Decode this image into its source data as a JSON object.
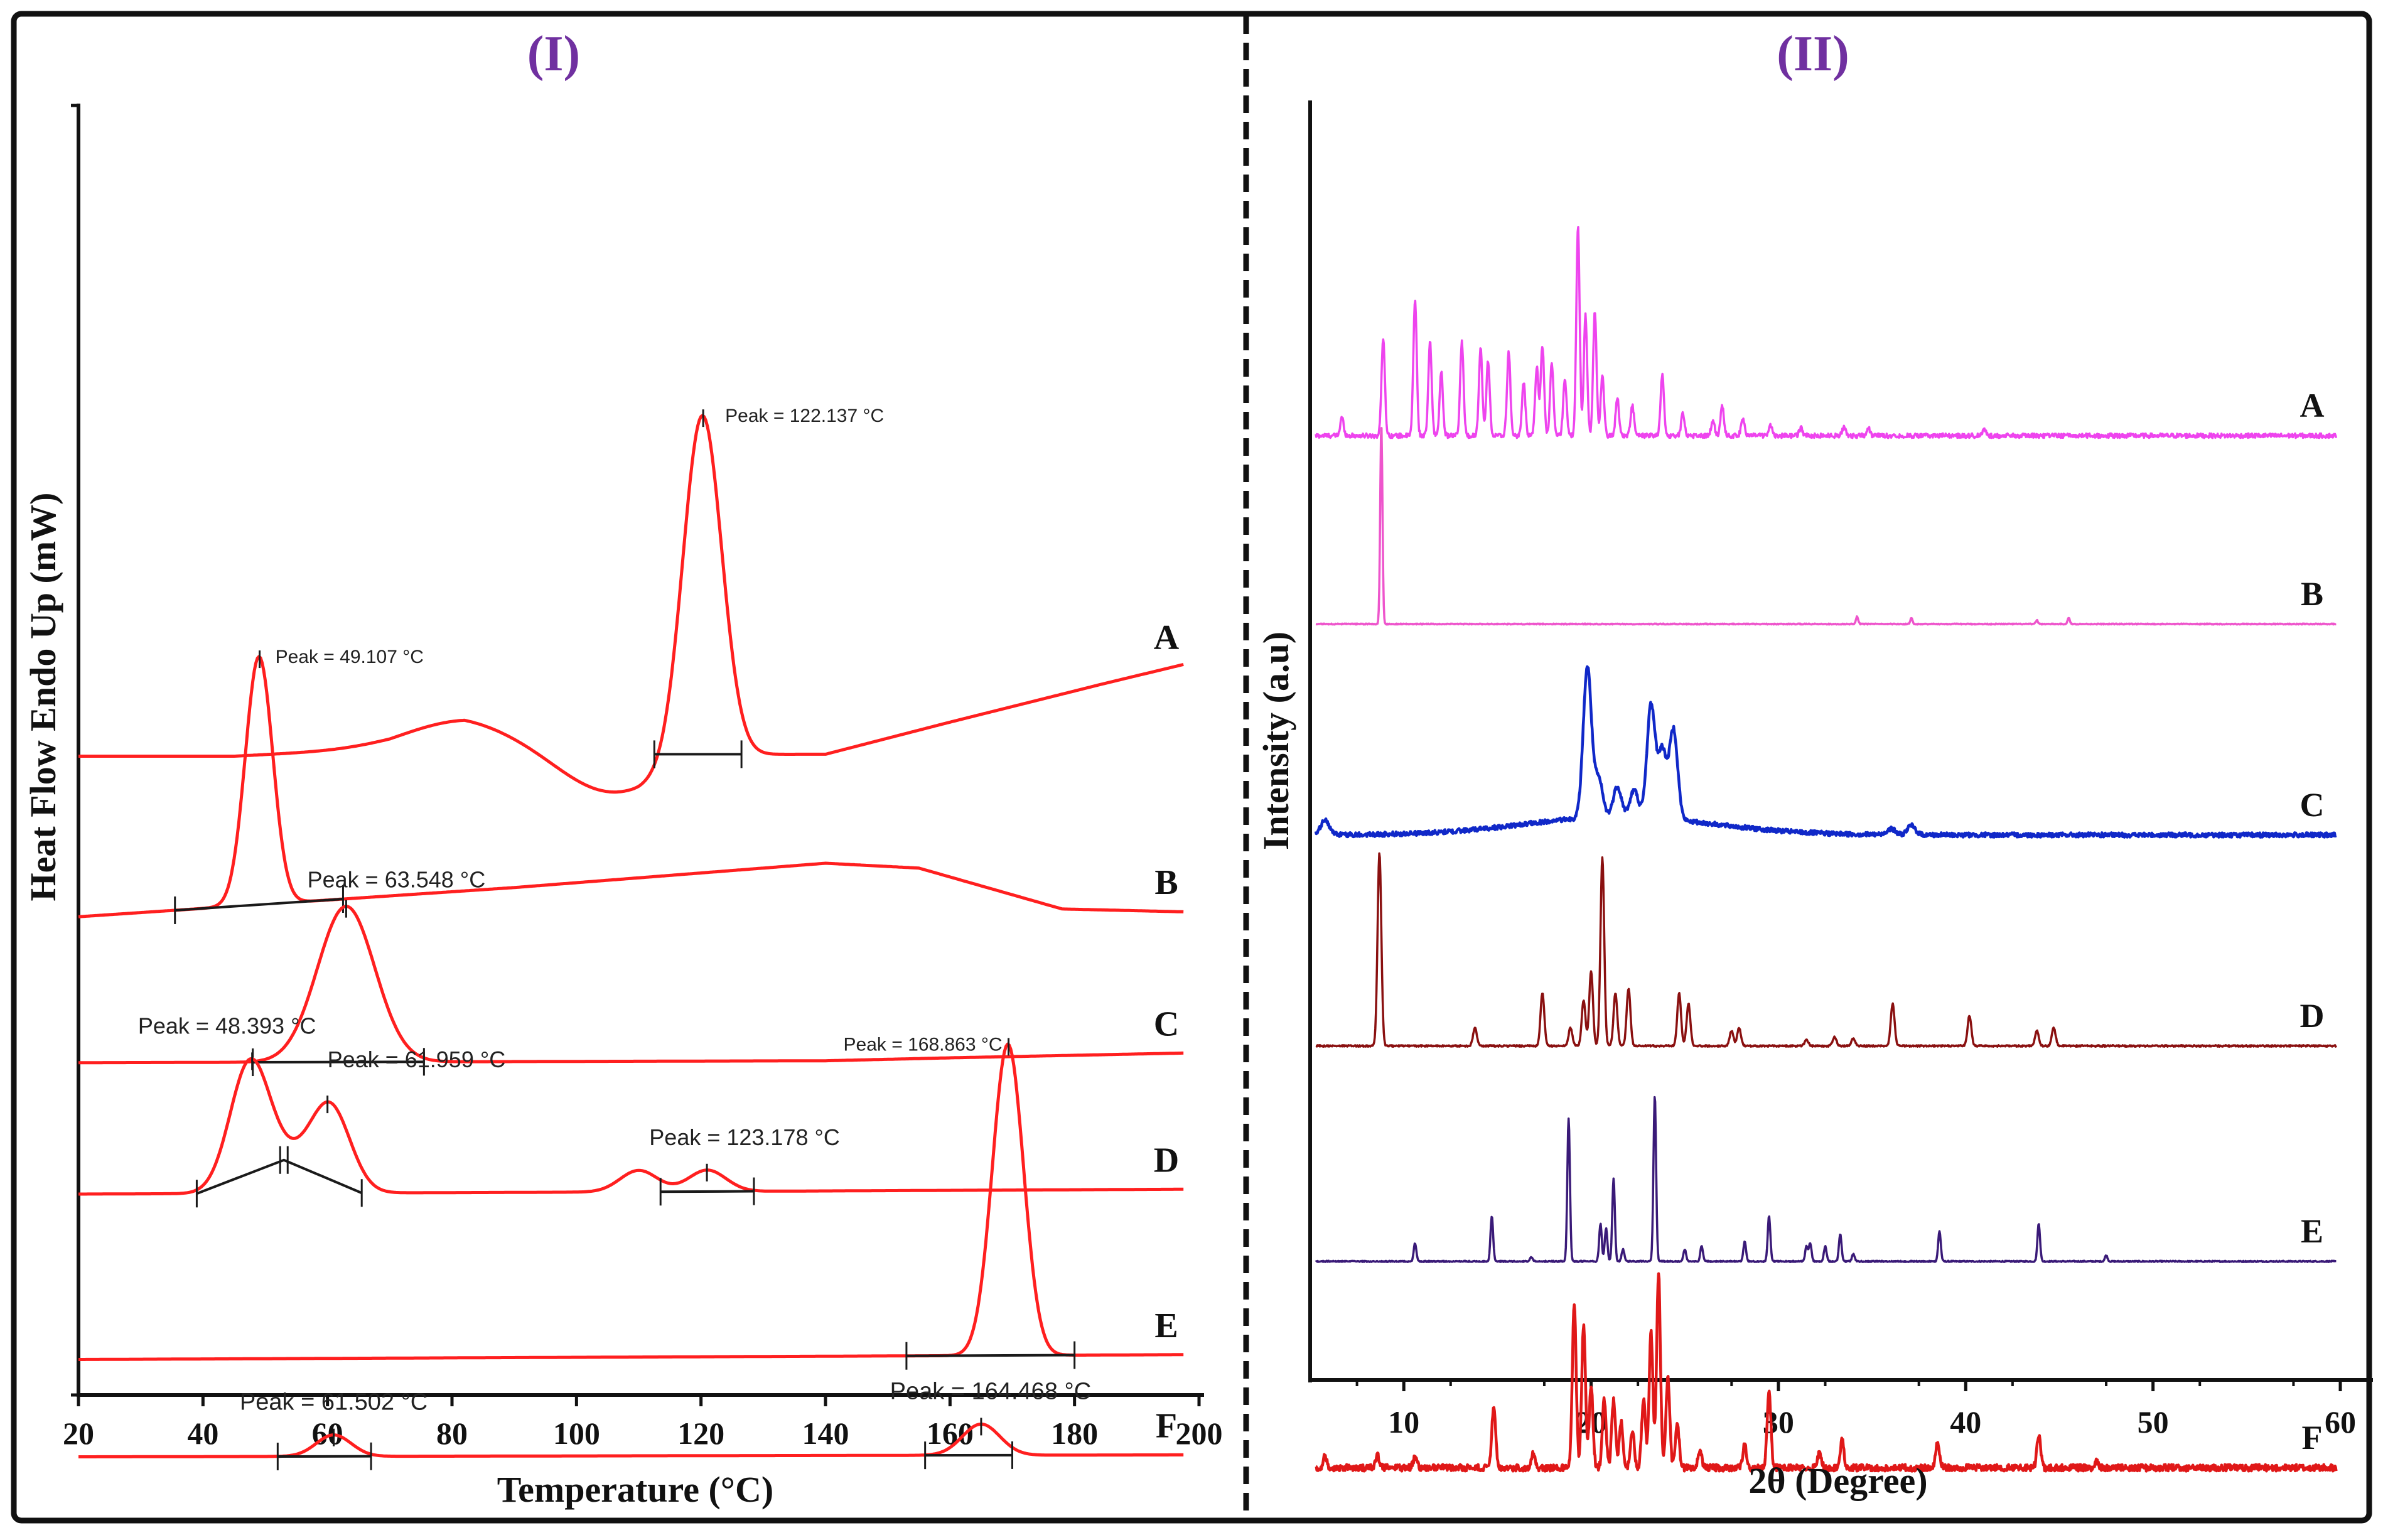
{
  "colors": {
    "frame": "#111111",
    "panel_title": "#7030a0",
    "dsc_curve": "#ff1f1f",
    "baseline": "#1a1a1a",
    "xrd_A": "#ee44ee",
    "xrd_B": "#ee55cc",
    "xrd_C": "#1028c8",
    "xrd_D": "#8a1010",
    "xrd_E": "#3a1a78",
    "xrd_F": "#e01818"
  },
  "chart_data": [
    {
      "type": "line",
      "id": "dsc",
      "title": "(I)",
      "xlabel": "Temperature (°C)",
      "ylabel": "Heat Flow Endo Up (mW)",
      "xlim": [
        20,
        200
      ],
      "x_ticks": [
        20,
        40,
        60,
        80,
        100,
        120,
        140,
        160,
        180,
        200
      ],
      "y_ticks_shown": false,
      "series": [
        {
          "name": "A",
          "baseline": 6.1,
          "drift": [
            [
              20,
              0
            ],
            [
              45,
              0
            ],
            [
              70,
              0.08
            ],
            [
              82,
              0.2
            ],
            [
              110,
              0.02
            ],
            [
              140,
              0.02
            ],
            [
              160,
              0.35
            ],
            [
              185,
              0.75
            ],
            [
              198,
              0.95
            ]
          ],
          "features": [
            {
              "type": "peak",
              "center": 120.2,
              "height": 3.55,
              "width": 3.1
            },
            {
              "type": "bump",
              "center": 80,
              "height": 0.18,
              "width": 9
            },
            {
              "type": "bump",
              "center": 105,
              "height": -0.42,
              "width": 8
            }
          ],
          "integration": [
            112.5,
            126.5
          ],
          "annotations": [
            {
              "text": "Peak = 122.137 °C",
              "x": 122.1
            }
          ]
        },
        {
          "name": "B",
          "baseline": 4.45,
          "drift": [
            [
              20,
              0
            ],
            [
              90,
              0.3
            ],
            [
              140,
              0.55
            ],
            [
              155,
              0.5
            ],
            [
              178,
              0.08
            ],
            [
              198,
              0.05
            ]
          ],
          "features": [
            {
              "type": "peak",
              "center": 49.0,
              "height": 2.55,
              "width": 2.2
            }
          ],
          "integration": [
            35.5,
            62.5
          ],
          "annotations": [
            {
              "text": "Peak = 49.107 °C",
              "x": 49.1
            }
          ]
        },
        {
          "name": "C",
          "baseline": 2.95,
          "drift": [
            [
              20,
              0
            ],
            [
              140,
              0.02
            ],
            [
              160,
              0.05
            ],
            [
              198,
              0.1
            ]
          ],
          "features": [
            {
              "type": "peak",
              "center": 63.0,
              "height": 1.6,
              "width": 4.6
            }
          ],
          "integration": [
            48,
            75.5
          ],
          "annotations": [
            {
              "text": "Peak = 63.548 °C",
              "x": 63.5
            }
          ]
        },
        {
          "name": "D",
          "baseline": 1.6,
          "drift": [
            [
              20,
              0
            ],
            [
              100,
              0.02
            ],
            [
              198,
              0.05
            ]
          ],
          "features": [
            {
              "type": "peak",
              "center": 47.5,
              "height": 1.3,
              "width": 3.2
            },
            {
              "type": "peak",
              "center": 60.5,
              "height": 0.85,
              "width": 3.2
            },
            {
              "type": "bump",
              "center": 54,
              "height": 0.3,
              "width": 4
            },
            {
              "type": "peak",
              "center": 110,
              "height": 0.22,
              "width": 3
            },
            {
              "type": "peak",
              "center": 121,
              "height": 0.22,
              "width": 3
            }
          ],
          "integration": [
            39,
            65.5
          ],
          "integration2": [
            113.5,
            128.5
          ],
          "annotations": [
            {
              "text": "Peak = 48.393 °C",
              "x": 48.4
            },
            {
              "text": "Peak = 61.959 °C",
              "x": 62.0
            },
            {
              "text": "Peak = 123.178 °C",
              "x": 123.2
            }
          ]
        },
        {
          "name": "E",
          "baseline": -0.1,
          "drift": [
            [
              20,
              0
            ],
            [
              198,
              0.05
            ]
          ],
          "features": [
            {
              "type": "peak",
              "center": 169.3,
              "height": 3.2,
              "width": 2.5
            }
          ],
          "integration": [
            153,
            180
          ],
          "annotations": [
            {
              "text": "Peak = 168.863 °C",
              "x": 168.9
            }
          ]
        },
        {
          "name": "F",
          "baseline": -1.1,
          "drift": [
            [
              20,
              0
            ],
            [
              198,
              0.02
            ]
          ],
          "features": [
            {
              "type": "peak",
              "center": 61,
              "height": 0.22,
              "width": 2.8
            },
            {
              "type": "peak",
              "center": 165,
              "height": 0.32,
              "width": 3
            }
          ],
          "integration": [
            52,
            67
          ],
          "integration2": [
            156,
            170
          ],
          "annotations": [
            {
              "text": "Peak = 61.502 °C",
              "x": 61.5
            },
            {
              "text": "Peak = 164.468 °C",
              "x": 164.5
            }
          ]
        }
      ]
    },
    {
      "type": "line",
      "id": "xrd",
      "title": "(II)",
      "xlabel": "2θ (Degree)",
      "ylabel": "Intensity (a.u)",
      "xlim": [
        5,
        60
      ],
      "x_ticks": [
        10,
        20,
        30,
        40,
        50,
        60
      ],
      "y_ticks_shown": false,
      "series": [
        {
          "name": "A",
          "baseline": 5.9,
          "noise": 0.03,
          "peaks": [
            [
              6.7,
              0.12
            ],
            [
              8.9,
              0.65
            ],
            [
              10.6,
              0.9
            ],
            [
              11.4,
              0.62
            ],
            [
              12.0,
              0.42
            ],
            [
              13.1,
              0.62
            ],
            [
              14.1,
              0.58
            ],
            [
              14.5,
              0.5
            ],
            [
              15.6,
              0.55
            ],
            [
              16.4,
              0.35
            ],
            [
              17.1,
              0.45
            ],
            [
              17.4,
              0.6
            ],
            [
              17.9,
              0.48
            ],
            [
              18.6,
              0.38
            ],
            [
              19.3,
              1.38
            ],
            [
              19.7,
              0.8
            ],
            [
              20.2,
              0.82
            ],
            [
              20.6,
              0.4
            ],
            [
              21.4,
              0.25
            ],
            [
              22.2,
              0.2
            ],
            [
              23.8,
              0.4
            ],
            [
              24.9,
              0.15
            ],
            [
              26.5,
              0.1
            ],
            [
              27.0,
              0.2
            ],
            [
              28.1,
              0.12
            ],
            [
              29.6,
              0.07
            ],
            [
              31.2,
              0.05
            ],
            [
              33.5,
              0.06
            ],
            [
              34.8,
              0.05
            ],
            [
              41.0,
              0.04
            ]
          ]
        },
        {
          "name": "B",
          "baseline": 4.65,
          "noise": 0.006,
          "peaks": [
            [
              8.8,
              1.32
            ],
            [
              34.2,
              0.05
            ],
            [
              37.1,
              0.04
            ],
            [
              43.8,
              0.025
            ],
            [
              45.5,
              0.04
            ]
          ]
        },
        {
          "name": "C",
          "baseline": 3.25,
          "noise": 0.03,
          "peaks": [
            [
              5.8,
              0.1
            ],
            [
              19.8,
              1.0
            ],
            [
              20.4,
              0.25
            ],
            [
              21.4,
              0.2
            ],
            [
              22.3,
              0.18
            ],
            [
              23.2,
              0.75
            ],
            [
              23.8,
              0.45
            ],
            [
              24.4,
              0.6
            ],
            [
              36.0,
              0.04
            ],
            [
              37.1,
              0.06
            ]
          ],
          "halo": [
            21.5,
            0.12,
            5
          ]
        },
        {
          "name": "D",
          "baseline": 1.85,
          "noise": 0.01,
          "peaks": [
            [
              8.7,
              1.28
            ],
            [
              13.8,
              0.12
            ],
            [
              17.4,
              0.35
            ],
            [
              18.9,
              0.12
            ],
            [
              19.6,
              0.3
            ],
            [
              20.0,
              0.5
            ],
            [
              20.6,
              1.25
            ],
            [
              21.3,
              0.35
            ],
            [
              22.0,
              0.38
            ],
            [
              24.7,
              0.35
            ],
            [
              25.2,
              0.28
            ],
            [
              27.5,
              0.1
            ],
            [
              27.9,
              0.12
            ],
            [
              31.5,
              0.04
            ],
            [
              33.0,
              0.06
            ],
            [
              34.0,
              0.05
            ],
            [
              36.1,
              0.28
            ],
            [
              40.2,
              0.2
            ],
            [
              43.8,
              0.1
            ],
            [
              44.7,
              0.12
            ]
          ]
        },
        {
          "name": "E",
          "baseline": 0.42,
          "noise": 0.008,
          "peaks": [
            [
              10.6,
              0.12
            ],
            [
              14.7,
              0.3
            ],
            [
              16.8,
              0.03
            ],
            [
              18.8,
              0.95
            ],
            [
              20.5,
              0.25
            ],
            [
              20.8,
              0.22
            ],
            [
              21.2,
              0.55
            ],
            [
              21.7,
              0.08
            ],
            [
              23.4,
              1.1
            ],
            [
              25.0,
              0.08
            ],
            [
              25.9,
              0.1
            ],
            [
              28.2,
              0.13
            ],
            [
              29.5,
              0.3
            ],
            [
              31.5,
              0.1
            ],
            [
              31.7,
              0.12
            ],
            [
              32.5,
              0.1
            ],
            [
              33.3,
              0.18
            ],
            [
              34.0,
              0.05
            ],
            [
              38.6,
              0.2
            ],
            [
              43.9,
              0.25
            ],
            [
              47.5,
              0.04
            ]
          ]
        },
        {
          "name": "F",
          "baseline": -0.95,
          "noise": 0.045,
          "peaks": [
            [
              5.8,
              0.08
            ],
            [
              8.6,
              0.08
            ],
            [
              10.6,
              0.07
            ],
            [
              14.8,
              0.4
            ],
            [
              16.9,
              0.1
            ],
            [
              19.1,
              1.1
            ],
            [
              19.6,
              0.95
            ],
            [
              20.0,
              0.55
            ],
            [
              20.7,
              0.45
            ],
            [
              21.2,
              0.45
            ],
            [
              21.6,
              0.3
            ],
            [
              22.2,
              0.25
            ],
            [
              22.8,
              0.45
            ],
            [
              23.2,
              0.9
            ],
            [
              23.6,
              1.3
            ],
            [
              24.1,
              0.6
            ],
            [
              24.6,
              0.3
            ],
            [
              25.8,
              0.12
            ],
            [
              28.2,
              0.15
            ],
            [
              29.5,
              0.5
            ],
            [
              32.2,
              0.1
            ],
            [
              33.4,
              0.18
            ],
            [
              38.5,
              0.18
            ],
            [
              43.9,
              0.22
            ],
            [
              47.0,
              0.04
            ]
          ]
        }
      ]
    }
  ]
}
